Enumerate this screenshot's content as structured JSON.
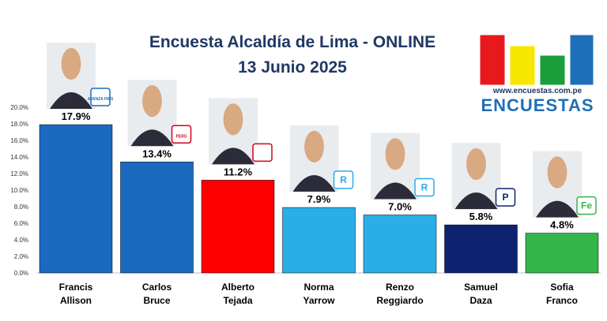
{
  "title": "Encuesta Alcaldía de Lima - ONLINE",
  "subtitle": "13 Junio 2025",
  "logo": {
    "url": "www.encuestas.com.pe",
    "word": "ENCUESTAS",
    "colors": [
      "#e8191d",
      "#f7e600",
      "#1a9e3a",
      "#1d6fb8"
    ]
  },
  "chart_data": {
    "type": "bar",
    "categories": [
      "Francis Allison",
      "Carlos Bruce",
      "Alberto Tejada",
      "Norma Yarrow",
      "Renzo Reggiardo",
      "Samuel Daza",
      "Sofia Franco"
    ],
    "category_lines": [
      [
        "Francis",
        "Allison"
      ],
      [
        "Carlos",
        "Bruce"
      ],
      [
        "Alberto",
        "Tejada"
      ],
      [
        "Norma",
        "Yarrow"
      ],
      [
        "Renzo",
        "Reggiardo"
      ],
      [
        "Samuel",
        "Daza"
      ],
      [
        "Sofia",
        "Franco"
      ]
    ],
    "values": [
      17.9,
      13.4,
      11.2,
      7.9,
      7.0,
      5.8,
      4.8
    ],
    "value_labels": [
      "17.9%",
      "13.4%",
      "11.2%",
      "7.9%",
      "7.0%",
      "5.8%",
      "4.8%"
    ],
    "colors": [
      "#1a6bbf",
      "#1a6bbf",
      "#ff0000",
      "#29aee8",
      "#29aee8",
      "#0d2270",
      "#33b54a"
    ],
    "yticks": [
      "0.0%",
      "2.0%",
      "4.0%",
      "6.0%",
      "8.0%",
      "10.0%",
      "12.0%",
      "14.0%",
      "16.0%",
      "18.0%",
      "20.0%"
    ],
    "ylim": [
      0,
      20
    ],
    "grid": false,
    "party_logos": [
      {
        "name": "avanza-pais-logo",
        "text": "AVANZA PAÍS",
        "color": "#1a6bbf"
      },
      {
        "name": "somos-peru-logo",
        "text": "PERÚ",
        "color": "#d4001a"
      },
      {
        "name": "apra-logo",
        "text": "",
        "color": "#d4001a"
      },
      {
        "name": "renovacion-popular-logo",
        "text": "R",
        "color": "#29aee8"
      },
      {
        "name": "renovacion-popular-logo",
        "text": "R",
        "color": "#29aee8"
      },
      {
        "name": "podemos-logo",
        "text": "P",
        "color": "#0d2270"
      },
      {
        "name": "fe-logo",
        "text": "Fe",
        "color": "#33b54a"
      }
    ]
  }
}
